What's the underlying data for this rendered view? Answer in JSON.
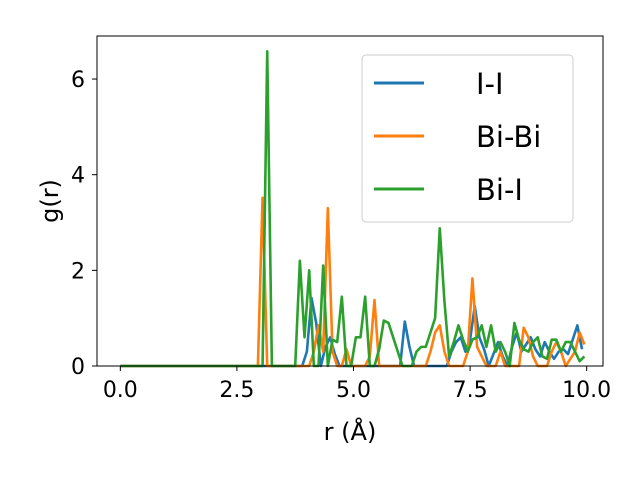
{
  "chart_data": {
    "type": "line",
    "title": "",
    "xlabel": "r (Å)",
    "ylabel": "g(r)",
    "xlim": [
      -0.5,
      10.35
    ],
    "ylim": [
      0,
      6.9
    ],
    "xticks": [
      0.0,
      2.5,
      5.0,
      7.5,
      10.0
    ],
    "xtick_labels": [
      "0.0",
      "2.5",
      "5.0",
      "7.5",
      "10.0"
    ],
    "yticks": [
      0,
      2,
      4,
      6
    ],
    "ytick_labels": [
      "0",
      "2",
      "4",
      "6"
    ],
    "grid": false,
    "legend_position": "top-right",
    "series": [
      {
        "name": "I-I",
        "color": "#1f77b4",
        "x": [
          0.0,
          3.8,
          3.9,
          4.0,
          4.1,
          4.2,
          4.3,
          4.4,
          4.5,
          4.6,
          4.7,
          4.8,
          4.9,
          5.0,
          5.1,
          5.2,
          5.3,
          5.4,
          5.5,
          5.6,
          5.7,
          5.8,
          5.9,
          6.0,
          6.1,
          6.2,
          6.3,
          6.4,
          6.5,
          6.6,
          6.7,
          6.8,
          6.9,
          7.0,
          7.1,
          7.2,
          7.3,
          7.4,
          7.5,
          7.6,
          7.7,
          7.8,
          7.9,
          8.0,
          8.1,
          8.2,
          8.3,
          8.4,
          8.5,
          8.6,
          8.7,
          8.8,
          8.9,
          9.0,
          9.1,
          9.2,
          9.3,
          9.4,
          9.5,
          9.6,
          9.7,
          9.8,
          9.9
        ],
        "values": [
          0,
          0,
          0,
          0.3,
          1.42,
          0.9,
          0,
          0.4,
          0.6,
          0.25,
          0,
          0,
          0,
          0,
          0,
          0,
          0,
          0,
          0,
          0,
          0,
          0,
          0,
          0,
          0.93,
          0.4,
          0,
          0,
          0,
          0,
          0,
          0,
          0,
          0,
          0.3,
          0.5,
          0.6,
          0.3,
          0.55,
          1.25,
          0.6,
          0.35,
          0,
          0.25,
          0.5,
          0.2,
          0,
          0.4,
          0.7,
          0.3,
          0.45,
          0.6,
          0.35,
          0.2,
          0.5,
          0.3,
          0.15,
          0.3,
          0.35,
          0.25,
          0.55,
          0.85,
          0.35
        ]
      },
      {
        "name": "Bi-Bi",
        "color": "#ff7f0e",
        "x": [
          0.0,
          2.85,
          2.95,
          3.05,
          3.15,
          3.25,
          3.35,
          3.45,
          3.55,
          3.65,
          3.75,
          3.85,
          3.95,
          4.05,
          4.15,
          4.25,
          4.35,
          4.45,
          4.55,
          4.65,
          4.75,
          4.85,
          4.95,
          5.05,
          5.15,
          5.25,
          5.35,
          5.45,
          5.55,
          5.65,
          5.75,
          5.85,
          5.95,
          6.05,
          6.15,
          6.25,
          6.35,
          6.45,
          6.55,
          6.65,
          6.75,
          6.85,
          6.95,
          7.05,
          7.15,
          7.25,
          7.35,
          7.45,
          7.55,
          7.65,
          7.75,
          7.85,
          7.95,
          8.05,
          8.15,
          8.25,
          8.35,
          8.45,
          8.55,
          8.65,
          8.75,
          8.85,
          8.95,
          9.05,
          9.15,
          9.25,
          9.35,
          9.45,
          9.55,
          9.65,
          9.75,
          9.85,
          9.95
        ],
        "values": [
          0,
          0,
          0,
          3.52,
          0,
          0,
          0,
          0,
          0,
          0,
          0,
          0,
          0,
          0,
          0.3,
          0.85,
          0.3,
          3.3,
          0.3,
          0,
          0,
          0.35,
          0,
          0,
          0,
          0,
          0.2,
          1.38,
          0,
          0,
          0,
          0,
          0,
          0,
          0,
          0,
          0,
          0,
          0,
          0.3,
          0.7,
          0.85,
          0.3,
          0,
          0,
          0,
          0,
          0.3,
          1.83,
          0.4,
          0.2,
          0,
          0,
          0,
          0.3,
          0,
          0,
          0,
          0,
          0.8,
          0.6,
          0.2,
          0,
          0,
          0,
          0.3,
          0.5,
          0.3,
          0,
          0.15,
          0.3,
          0.7,
          0.45
        ]
      },
      {
        "name": "Bi-I",
        "color": "#2ca02c",
        "x": [
          0.0,
          2.95,
          3.05,
          3.15,
          3.25,
          3.35,
          3.45,
          3.55,
          3.65,
          3.75,
          3.85,
          3.95,
          4.05,
          4.15,
          4.25,
          4.35,
          4.45,
          4.55,
          4.65,
          4.75,
          4.85,
          4.95,
          5.05,
          5.15,
          5.25,
          5.35,
          5.45,
          5.55,
          5.65,
          5.75,
          5.85,
          5.95,
          6.05,
          6.15,
          6.25,
          6.35,
          6.45,
          6.55,
          6.65,
          6.75,
          6.85,
          6.95,
          7.05,
          7.15,
          7.25,
          7.35,
          7.45,
          7.55,
          7.65,
          7.75,
          7.85,
          7.95,
          8.05,
          8.15,
          8.25,
          8.35,
          8.45,
          8.55,
          8.65,
          8.75,
          8.85,
          8.95,
          9.05,
          9.15,
          9.25,
          9.35,
          9.45,
          9.55,
          9.65,
          9.75,
          9.85,
          9.95
        ],
        "values": [
          0,
          0,
          0,
          6.58,
          0,
          0,
          0,
          0,
          0,
          0,
          2.2,
          0.6,
          2.0,
          0,
          0,
          2.1,
          0,
          0.55,
          0.5,
          1.45,
          0,
          0,
          0.6,
          0.6,
          1.45,
          0,
          0,
          0.35,
          0.95,
          0.9,
          0.6,
          0.3,
          0,
          0,
          0,
          0.3,
          0.4,
          0.4,
          0.7,
          1.0,
          2.88,
          1.35,
          0.2,
          0.5,
          0.85,
          0.55,
          0.3,
          0.55,
          0.6,
          0.85,
          0.4,
          0.85,
          0.3,
          0.5,
          0.3,
          0,
          0.9,
          0.55,
          0.35,
          0.3,
          0.5,
          0.6,
          0.2,
          0.15,
          0.55,
          0.55,
          0.3,
          0.5,
          0.5,
          0.3,
          0.1,
          0.2
        ]
      }
    ]
  }
}
